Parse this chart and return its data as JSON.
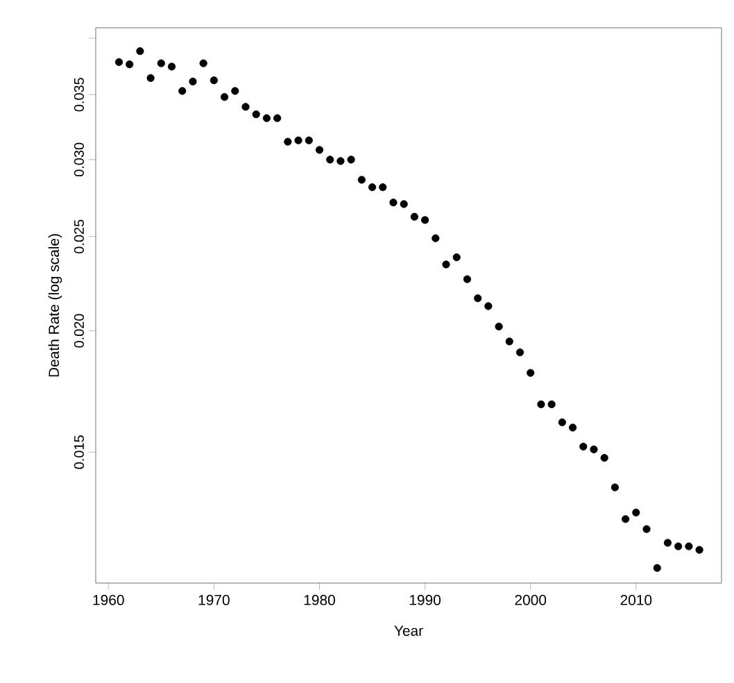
{
  "chart_data": {
    "type": "scatter",
    "xlabel": "Year",
    "ylabel": "Death Rate (log scale)",
    "log": "y",
    "marker": "circle",
    "x": [
      1961,
      1962,
      1963,
      1964,
      1965,
      1966,
      1967,
      1968,
      1969,
      1970,
      1971,
      1972,
      1973,
      1974,
      1975,
      1976,
      1977,
      1978,
      1979,
      1980,
      1981,
      1982,
      1983,
      1984,
      1985,
      1986,
      1987,
      1988,
      1989,
      1990,
      1991,
      1992,
      1993,
      1994,
      1995,
      1996,
      1997,
      1998,
      1999,
      2000,
      2001,
      2002,
      2003,
      2004,
      2005,
      2006,
      2007,
      2008,
      2009,
      2010,
      2011,
      2012,
      2013,
      2014,
      2015,
      2016
    ],
    "series": [
      {
        "color": "#000000",
        "values": [
          0.0378,
          0.0376,
          0.0388,
          0.0364,
          0.0377,
          0.0374,
          0.0353,
          0.0361,
          0.0377,
          0.0362,
          0.0348,
          0.0353,
          0.034,
          0.0334,
          0.0331,
          0.0331,
          0.0313,
          0.0314,
          0.0314,
          0.0307,
          0.03,
          0.0299,
          0.03,
          0.0286,
          0.0281,
          0.0281,
          0.0271,
          0.027,
          0.0262,
          0.026,
          0.0249,
          0.0234,
          0.0238,
          0.0226,
          0.0216,
          0.0212,
          0.0202,
          0.0195,
          0.019,
          0.0181,
          0.0168,
          0.0168,
          0.0161,
          0.0159,
          0.0152,
          0.0151,
          0.0148,
          0.0138,
          0.0128,
          0.013,
          0.0125,
          0.0114,
          0.0121,
          0.012,
          0.012,
          0.0119
        ]
      }
    ],
    "xlim": [
      1958.8,
      2018.1
    ],
    "ylim": [
      0.011,
      0.041
    ],
    "xticks": [
      1960,
      1970,
      1980,
      1990,
      2000,
      2010
    ],
    "yticks": [
      0.015,
      {
        "value": 0.02,
        "label": "0.020"
      },
      0.025,
      {
        "value": 0.03,
        "label": "0.030"
      },
      0.035,
      {
        "value": 0.04,
        "label": null
      }
    ]
  }
}
